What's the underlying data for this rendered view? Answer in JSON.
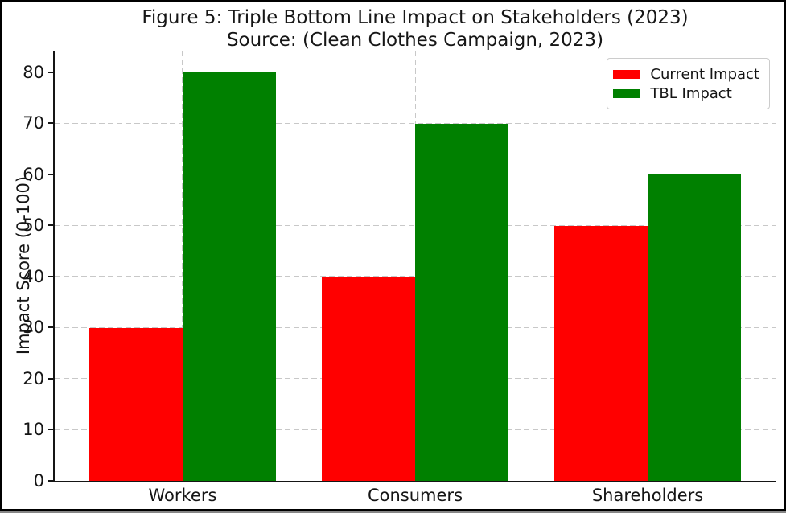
{
  "chart_data": {
    "type": "bar",
    "title": "Figure 5: Triple Bottom Line Impact on Stakeholders (2023)",
    "subtitle": "Source: (Clean Clothes Campaign, 2023)",
    "categories": [
      "Workers",
      "Consumers",
      "Shareholders"
    ],
    "series": [
      {
        "name": "Current Impact",
        "color": "#ff0000",
        "values": [
          30,
          40,
          50
        ]
      },
      {
        "name": "TBL Impact",
        "color": "#008000",
        "values": [
          80,
          70,
          60
        ]
      }
    ],
    "xlabel": "",
    "ylabel": "Impact Score (0-100)",
    "yticks": [
      0,
      10,
      20,
      30,
      40,
      50,
      60,
      70,
      80
    ],
    "ylim": [
      0,
      84.25
    ],
    "xlim": [
      -0.55,
      2.55
    ],
    "bar_width": 0.4,
    "grid": true,
    "grid_style": "dashed",
    "legend": {
      "position": "upper right",
      "entries": [
        "Current Impact",
        "TBL Impact"
      ]
    },
    "colors": {
      "bar_red": "#ff0000",
      "bar_green": "#008000",
      "grid": "#c8c8c8",
      "text": "#151515",
      "legend_border": "#cccccc",
      "frame_border": "#000000"
    }
  }
}
